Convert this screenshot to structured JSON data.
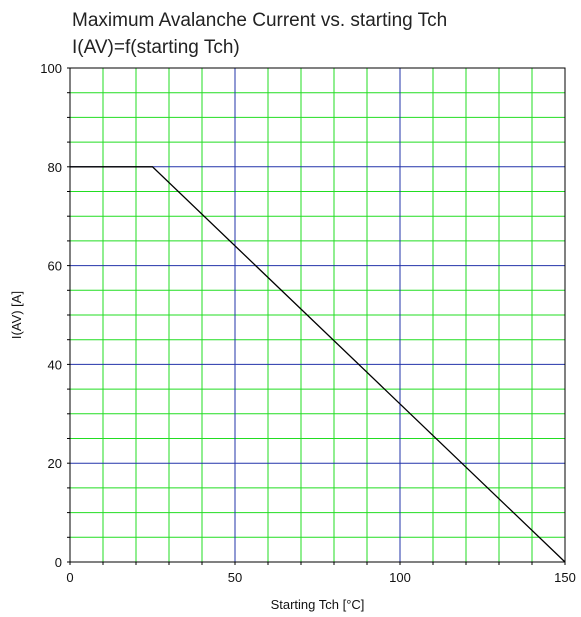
{
  "chart_data": {
    "type": "line",
    "title": "Maximum Avalanche Current vs. starting Tch",
    "subtitle": "I(AV)=f(starting Tch)",
    "xlabel": "Starting Tch [°C]",
    "ylabel": "I(AV) [A]",
    "xlim": [
      0,
      150
    ],
    "ylim": [
      0,
      100
    ],
    "x_ticks": [
      0,
      50,
      100,
      150
    ],
    "y_ticks": [
      0,
      20,
      40,
      60,
      80,
      100
    ],
    "grid": {
      "minor_x_step": 10,
      "minor_y_step": 5,
      "major_x_step": 50,
      "major_y_step": 20,
      "minor_color": "#22dd22",
      "major_color": "#2233aa"
    },
    "series": [
      {
        "x": [
          0,
          25,
          150
        ],
        "y": [
          80,
          80,
          0
        ],
        "color": "#000000"
      }
    ]
  }
}
